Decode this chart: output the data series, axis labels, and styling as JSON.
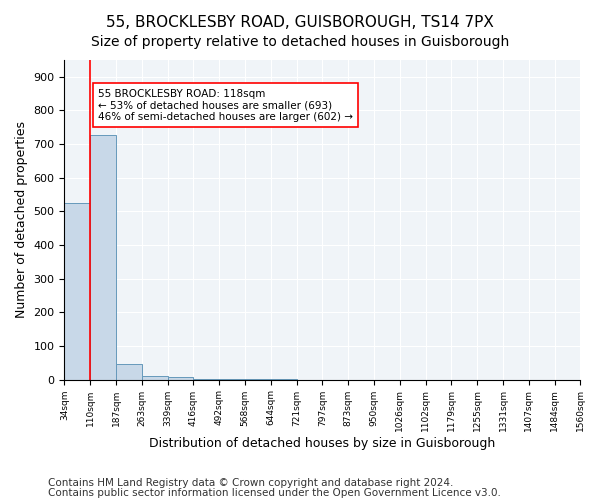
{
  "title1": "55, BROCKLESBY ROAD, GUISBOROUGH, TS14 7PX",
  "title2": "Size of property relative to detached houses in Guisborough",
  "xlabel": "Distribution of detached houses by size in Guisborough",
  "ylabel": "Number of detached properties",
  "footnote1": "Contains HM Land Registry data © Crown copyright and database right 2024.",
  "footnote2": "Contains public sector information licensed under the Open Government Licence v3.0.",
  "bar_values": [
    525,
    728,
    47,
    12,
    8,
    2,
    1,
    1,
    1,
    0,
    0,
    0,
    0,
    0,
    0,
    0,
    0,
    0,
    0,
    0
  ],
  "bin_labels": [
    "34sqm",
    "110sqm",
    "187sqm",
    "263sqm",
    "339sqm",
    "416sqm",
    "492sqm",
    "568sqm",
    "644sqm",
    "721sqm",
    "797sqm",
    "873sqm",
    "950sqm",
    "1026sqm",
    "1102sqm",
    "1179sqm",
    "1255sqm",
    "1331sqm",
    "1407sqm",
    "1484sqm",
    "1560sqm"
  ],
  "bar_color": "#c8d8e8",
  "bar_edge_color": "#6699bb",
  "red_line_x": 1.0,
  "annotation_text": "55 BROCKLESBY ROAD: 118sqm\n← 53% of detached houses are smaller (693)\n46% of semi-detached houses are larger (602) →",
  "annotation_box_color": "white",
  "annotation_box_edge": "red",
  "ylim": [
    0,
    950
  ],
  "yticks": [
    0,
    100,
    200,
    300,
    400,
    500,
    600,
    700,
    800,
    900
  ],
  "title1_fontsize": 11,
  "title2_fontsize": 10,
  "xlabel_fontsize": 9,
  "ylabel_fontsize": 9,
  "footnote_fontsize": 7.5,
  "background_color": "#f0f4f8"
}
